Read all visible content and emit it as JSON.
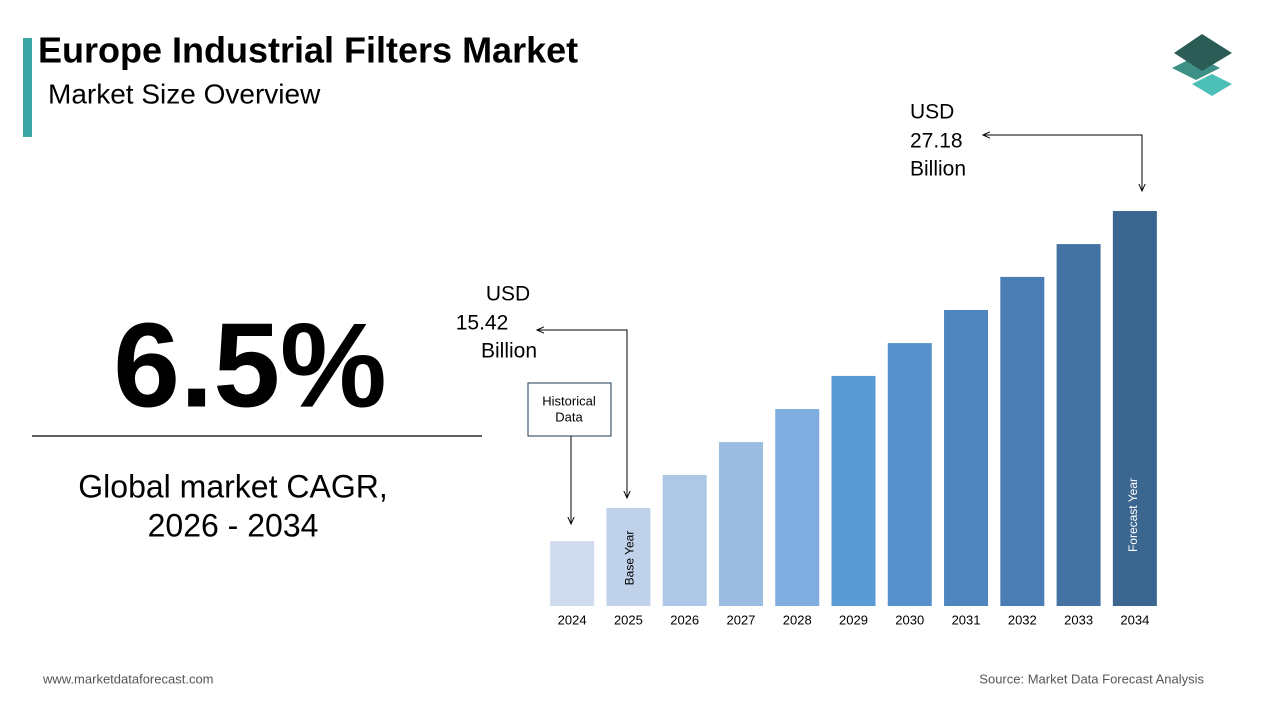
{
  "header": {
    "title": "Europe Industrial Filters Market",
    "subtitle": "Market Size Overview"
  },
  "cagr": {
    "value": "6.5%",
    "label_lines": [
      "Global market CAGR,",
      "2026 - 2034"
    ]
  },
  "chart_data": {
    "type": "bar",
    "categories": [
      "2024",
      "2025",
      "2026",
      "2027",
      "2028",
      "2029",
      "2030",
      "2031",
      "2032",
      "2033",
      "2034"
    ],
    "values": [
      14.11,
      15.42,
      16.73,
      18.03,
      19.34,
      20.65,
      21.95,
      23.26,
      24.57,
      25.87,
      27.18
    ],
    "colors": [
      "#d0dcee",
      "#c0d2ea",
      "#aec7e6",
      "#9bbbe0",
      "#80ade0",
      "#5b9bd5",
      "#5590cc",
      "#4f86c0",
      "#4a7db3",
      "#4472a3",
      "#3b6690"
    ],
    "ylim": [
      11.54,
      27.18
    ],
    "unit_prefix": "USD",
    "unit_suffix": "Billion",
    "annotations": {
      "historical": [
        "Historical",
        "Data"
      ],
      "base_year": "Base Year",
      "forecast_year": "Forecast Year"
    }
  },
  "footer": {
    "website": "www.marketdataforecast.com",
    "source": "Source: Market Data Forecast Analysis"
  }
}
